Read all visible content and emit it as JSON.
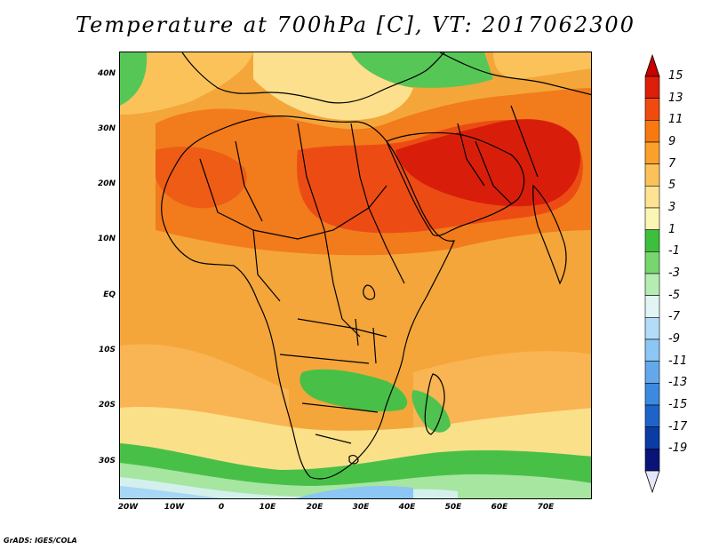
{
  "title": "Temperature at 700hPa [C], VT: 2017062300",
  "lat_labels": [
    "40N",
    "30N",
    "20N",
    "10N",
    "EQ",
    "10S",
    "20S",
    "30S"
  ],
  "lon_labels": [
    "20W",
    "10W",
    "0",
    "10E",
    "20E",
    "30E",
    "40E",
    "50E",
    "60E",
    "70E"
  ],
  "colorbar": {
    "levels": [
      "15",
      "13",
      "11",
      "9",
      "7",
      "5",
      "3",
      "1",
      "-1",
      "-3",
      "-5",
      "-7",
      "-9",
      "-11",
      "-13",
      "-15",
      "-17",
      "-19"
    ],
    "colors": [
      "#dc1e0a",
      "#f04a0f",
      "#f7790f",
      "#f9a12a",
      "#fbc25a",
      "#fde392",
      "#fcf6b4",
      "#3cbf3c",
      "#78d66e",
      "#b4ecb4",
      "#e1f6f4",
      "#b4dcf8",
      "#8cc6f4",
      "#64a8ec",
      "#3c8ae0",
      "#1e64c8",
      "#0a3ca5",
      "#0a1478"
    ],
    "top_arrow_color": "#c80000",
    "bottom_arrow_color": "#e6e6fa"
  },
  "credit": "GrADS: IGES/COLA"
}
